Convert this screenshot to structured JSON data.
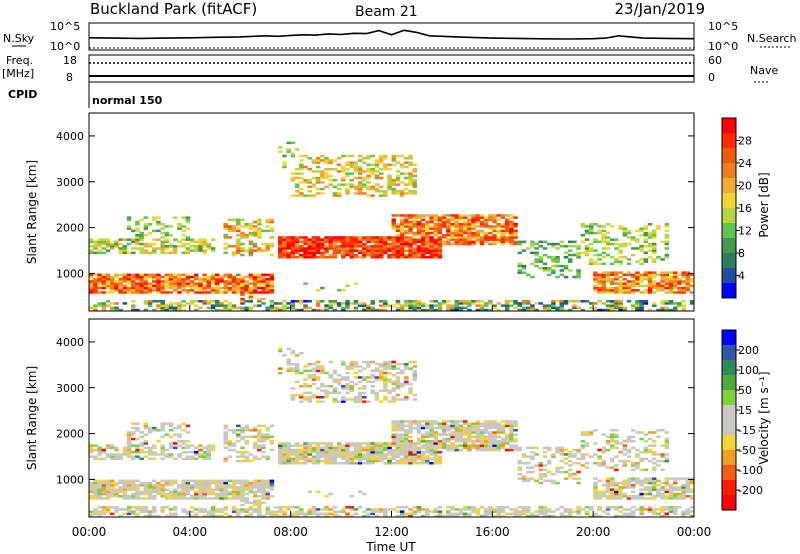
{
  "header": {
    "station": "Buckland Park (fitACF)",
    "beam": "Beam 21",
    "date": "23/Jan/2019"
  },
  "side_labels": {
    "nsky": "N.Sky",
    "nsearch": "N.Search",
    "freq": "Freq.",
    "freq_unit": "[MHz]",
    "cpid": "CPID",
    "nave": "Nave",
    "noise_top": "10^5",
    "noise_bottom": "10^0",
    "freq_top": "18",
    "freq_bottom": "8",
    "nave_top": "60",
    "nave_bottom": "0",
    "cpid_value": "normal 150"
  },
  "colors": {
    "power_scale": [
      "#0000ff",
      "#1f4fa0",
      "#2e7d5e",
      "#3f9a4f",
      "#5ec44e",
      "#b5d640",
      "#f2d534",
      "#f2a935",
      "#f07d20",
      "#f05a10",
      "#ff2a00",
      "#ff0000"
    ],
    "velocity_scale": [
      "#0000ff",
      "#2d55a8",
      "#2e8a5a",
      "#4caa3e",
      "#7ed03c",
      "#c8c8c0",
      "#c8c8c0",
      "#f2d535",
      "#f0a020",
      "#f06010",
      "#ff1a00",
      "#ff0000"
    ]
  },
  "chart_data": [
    {
      "type": "line",
      "name": "noise",
      "x_range": [
        0,
        24
      ],
      "x": [
        0,
        1,
        2,
        3,
        4,
        5,
        6,
        7,
        7.5,
        8,
        8.5,
        9,
        9.5,
        10,
        10.5,
        11,
        11.5,
        12,
        12.5,
        13,
        13.5,
        14,
        15,
        16,
        17,
        18,
        19,
        20,
        20.5,
        21,
        22,
        23,
        24
      ],
      "values": [
        0.42,
        0.4,
        0.38,
        0.4,
        0.42,
        0.45,
        0.48,
        0.55,
        0.52,
        0.58,
        0.62,
        0.6,
        0.68,
        0.64,
        0.72,
        0.7,
        0.9,
        0.62,
        0.92,
        0.78,
        0.55,
        0.52,
        0.45,
        0.4,
        0.38,
        0.35,
        0.34,
        0.36,
        0.4,
        0.55,
        0.4,
        0.38,
        0.36
      ],
      "y_labels": [
        "10^5",
        "10^0"
      ]
    },
    {
      "type": "heatmap",
      "name": "power",
      "ylabel": "Slant Range [km]",
      "colorbar_label": "Power [dB]",
      "colorbar_ticks": [
        4,
        8,
        12,
        16,
        20,
        24,
        28
      ],
      "y_range": [
        180,
        4500
      ],
      "y_ticks": [
        1000,
        2000,
        3000,
        4000
      ],
      "x_range": [
        0,
        24
      ]
    },
    {
      "type": "heatmap",
      "name": "velocity",
      "ylabel": "Slant Range [km]",
      "colorbar_label": "Velocity [m s⁻¹]",
      "colorbar_ticks": [
        "200",
        "100",
        "50",
        "15",
        "-15",
        "-50",
        "-100",
        "-200"
      ],
      "y_range": [
        180,
        4500
      ],
      "y_ticks": [
        1000,
        2000,
        3000,
        4000
      ],
      "x_range": [
        0,
        24
      ],
      "x_ticks": [
        "00:00",
        "04:00",
        "08:00",
        "12:00",
        "16:00",
        "20:00",
        "00:00"
      ],
      "xlabel": "Time UT"
    }
  ]
}
